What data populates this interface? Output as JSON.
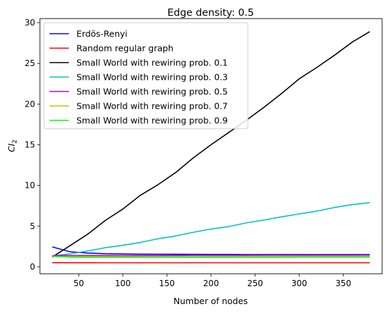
{
  "chart_data": {
    "type": "line",
    "title": "Edge density: 0.5",
    "xlabel": "Number of nodes",
    "ylabel": "CI",
    "ylabel_sub": "2",
    "xlim": [
      6,
      394
    ],
    "ylim": [
      -0.85,
      30.5
    ],
    "xticks": [
      50,
      100,
      150,
      200,
      250,
      300,
      350
    ],
    "yticks": [
      0,
      5,
      10,
      15,
      20,
      25,
      30
    ],
    "legend_position": "top-left",
    "x": [
      20,
      40,
      60,
      80,
      100,
      120,
      140,
      160,
      180,
      200,
      220,
      240,
      260,
      280,
      300,
      320,
      340,
      360,
      380
    ],
    "series": [
      {
        "name": "Erdös-Renyi",
        "color": "#0000ff",
        "values": [
          2.45,
          1.85,
          1.7,
          1.62,
          1.58,
          1.57,
          1.56,
          1.55,
          1.54,
          1.53,
          1.53,
          1.52,
          1.52,
          1.52,
          1.51,
          1.51,
          1.51,
          1.51,
          1.51
        ]
      },
      {
        "name": "Random regular graph",
        "color": "#ff0000",
        "values": [
          0.52,
          0.51,
          0.51,
          0.5,
          0.5,
          0.5,
          0.5,
          0.5,
          0.5,
          0.5,
          0.5,
          0.5,
          0.5,
          0.5,
          0.5,
          0.5,
          0.5,
          0.5,
          0.5
        ]
      },
      {
        "name": "Small World with rewiring prob. 0.1",
        "color": "#000000",
        "values": [
          1.2,
          2.6,
          4.0,
          5.7,
          7.1,
          8.8,
          10.1,
          11.6,
          13.4,
          15.0,
          16.5,
          18.0,
          19.6,
          21.3,
          23.1,
          24.5,
          26.0,
          27.6,
          28.9
        ]
      },
      {
        "name": "Small World with rewiring prob. 0.3",
        "color": "#00bfbf",
        "values": [
          1.35,
          1.6,
          1.95,
          2.35,
          2.65,
          3.0,
          3.45,
          3.8,
          4.25,
          4.65,
          4.95,
          5.4,
          5.75,
          6.15,
          6.5,
          6.85,
          7.3,
          7.65,
          7.9
        ]
      },
      {
        "name": "Small World with rewiring prob. 0.5",
        "color": "#bf00bf",
        "values": [
          1.4,
          1.4,
          1.4,
          1.4,
          1.4,
          1.4,
          1.41,
          1.41,
          1.42,
          1.42,
          1.42,
          1.42,
          1.43,
          1.43,
          1.43,
          1.44,
          1.44,
          1.44,
          1.45
        ]
      },
      {
        "name": "Small World with rewiring prob. 0.7",
        "color": "#bfbf00",
        "values": [
          1.3,
          1.25,
          1.25,
          1.25,
          1.25,
          1.25,
          1.26,
          1.26,
          1.26,
          1.27,
          1.27,
          1.27,
          1.27,
          1.27,
          1.28,
          1.28,
          1.28,
          1.28,
          1.28
        ]
      },
      {
        "name": "Small World with rewiring prob. 0.9",
        "color": "#00ff00",
        "values": [
          1.3,
          1.2,
          1.18,
          1.18,
          1.18,
          1.18,
          1.18,
          1.19,
          1.19,
          1.19,
          1.19,
          1.19,
          1.19,
          1.19,
          1.2,
          1.2,
          1.2,
          1.2,
          1.2
        ]
      }
    ]
  }
}
